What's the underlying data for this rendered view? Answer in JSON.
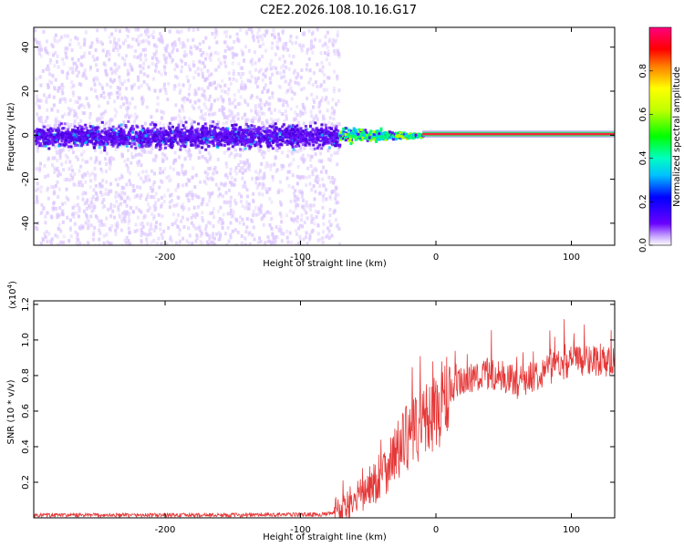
{
  "title": "C2E2.2026.108.10.16.G17",
  "colors": {
    "signal": "#e53838",
    "noise_fill": "#6a10ff",
    "noise_light": "#dcc6ff",
    "core_line": "#ffe000"
  },
  "chart_data": [
    {
      "type": "heatmap",
      "xlabel": "Height of straight line (km)",
      "ylabel": "Frequency (Hz)",
      "xlim": [
        -297,
        132
      ],
      "ylim": [
        -50,
        49
      ],
      "x_ticks": [
        -200,
        -100,
        0,
        100
      ],
      "x_tick_labels": [
        "-200",
        "-100",
        "0",
        "100"
      ],
      "y_ticks": [
        -40,
        -20,
        0,
        20,
        40
      ],
      "y_tick_labels": [
        "-40",
        "-20",
        "0",
        "20",
        "40"
      ],
      "grid": false,
      "colorbar": {
        "label": "Normalized spectral amplitude",
        "range": [
          0,
          1
        ],
        "ticks": [
          0.0,
          0.2,
          0.4,
          0.6,
          0.8
        ],
        "tick_labels": [
          "0.0",
          "0.2",
          "0.4",
          "0.6",
          "0.8"
        ],
        "colormap": "rainbow"
      },
      "features": {
        "noise_band_x_end": -72,
        "noise_band_hz": [
          -5,
          5
        ],
        "noise_scatter_hz": [
          -50,
          49
        ],
        "transition_x": [
          -72,
          -10
        ],
        "tone_x_start": -10,
        "tone_freq_hz": 0.5
      }
    },
    {
      "type": "line",
      "xlabel": "Height of straight line (km)",
      "ylabel": "SNR (10 * v/v)",
      "scale_label": "(x10",
      "scale_exponent": "4",
      "scale_suffix": ")",
      "xlim": [
        -297,
        132
      ],
      "ylim": [
        0,
        1.22
      ],
      "x_ticks": [
        -200,
        -100,
        0,
        100
      ],
      "x_tick_labels": [
        "-200",
        "-100",
        "0",
        "100"
      ],
      "y_ticks": [
        0.2,
        0.4,
        0.6,
        0.8,
        1.0,
        1.2
      ],
      "y_tick_labels": [
        "0.2",
        "0.4",
        "0.6",
        "0.8",
        "1.0",
        "1.2"
      ],
      "grid": false,
      "series": [
        {
          "x": [
            -297,
            -250,
            -200,
            -150,
            -100,
            -80,
            -70,
            -60,
            -50,
            -40,
            -30,
            -20,
            -10,
            0,
            10,
            20,
            30,
            40,
            50,
            60,
            70,
            80,
            90,
            100,
            110,
            120,
            132
          ],
          "y": [
            0.015,
            0.015,
            0.015,
            0.016,
            0.018,
            0.02,
            0.04,
            0.09,
            0.16,
            0.25,
            0.36,
            0.46,
            0.53,
            0.6,
            0.7,
            0.76,
            0.8,
            0.81,
            0.79,
            0.76,
            0.79,
            0.83,
            0.86,
            0.88,
            0.89,
            0.89,
            0.88
          ]
        }
      ]
    }
  ]
}
